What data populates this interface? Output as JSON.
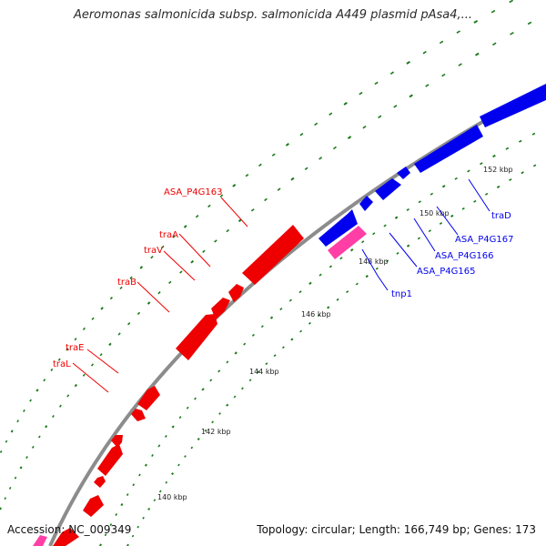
{
  "title": "Aeromonas salmonicida subsp. salmonicida A449 plasmid pAsa4,...",
  "footer": {
    "accession_label": "Accession:",
    "accession": "NC_009349",
    "topology": "Topology: circular; Length: 166,749 bp; Genes: 173"
  },
  "colors": {
    "backbone": "#8c8c8c",
    "forward_genes": "#0000ee",
    "reverse_genes": "#ee0000",
    "mobile_element": "#ff3fa5",
    "ticks": "#1a7a1a"
  },
  "scale_labels": [
    "140 kbp",
    "142 kbp",
    "144 kbp",
    "146 kbp",
    "148 kbp",
    "150 kbp",
    "152 kbp"
  ],
  "gene_labels": {
    "reverse": [
      "ASA_P4G163",
      "traA",
      "traV",
      "traB",
      "traE",
      "traL"
    ],
    "forward": [
      "traD",
      "ASA_P4G167",
      "ASA_P4G166",
      "ASA_P4G165",
      "tnp1"
    ]
  }
}
